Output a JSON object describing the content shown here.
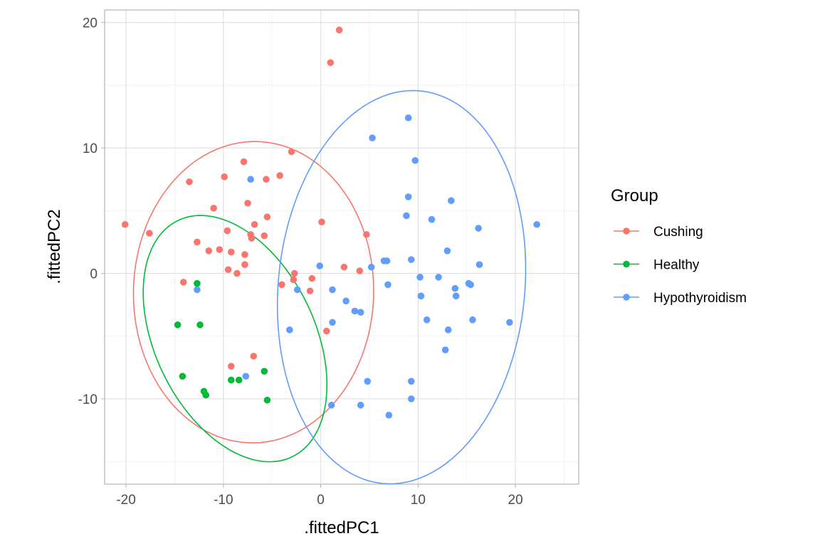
{
  "chart_data": {
    "type": "scatter",
    "xlabel": ".fittedPC1",
    "ylabel": ".fittedPC2",
    "xlim": [
      -22.2,
      26.5
    ],
    "ylim": [
      -16.8,
      21.0
    ],
    "x_ticks": [
      -20,
      -10,
      0,
      10,
      20
    ],
    "x_tick_labels": [
      "-20",
      "-10",
      "0",
      "10",
      "20"
    ],
    "y_ticks": [
      -10,
      0,
      10,
      20
    ],
    "y_tick_labels": [
      "-10",
      "0",
      "10",
      "20"
    ],
    "grid": true,
    "theme": "light",
    "legend": {
      "title": "Group",
      "position": "right",
      "entries": [
        "Cushing",
        "Healthy",
        "Hypothyroidism"
      ]
    },
    "series": [
      {
        "name": "Cushing",
        "color": "#F8766D",
        "ellipse": {
          "center": [
            -6.9,
            -1.5
          ],
          "semi_axes": [
            12.35,
            12.0
          ],
          "angle_deg": 10
        },
        "points": [
          [
            -20.1,
            3.9
          ],
          [
            -17.6,
            3.2
          ],
          [
            -13.5,
            7.3
          ],
          [
            -12.7,
            2.5
          ],
          [
            -11.5,
            1.8
          ],
          [
            -11.0,
            5.2
          ],
          [
            -10.4,
            1.9
          ],
          [
            -9.9,
            7.7
          ],
          [
            -9.6,
            3.4
          ],
          [
            -9.5,
            0.3
          ],
          [
            -9.2,
            1.7
          ],
          [
            -8.6,
            0.0
          ],
          [
            -7.9,
            8.9
          ],
          [
            -7.8,
            0.7
          ],
          [
            -7.8,
            1.5
          ],
          [
            -7.5,
            5.6
          ],
          [
            -7.2,
            3.1
          ],
          [
            -7.1,
            2.8
          ],
          [
            -6.8,
            3.9
          ],
          [
            -5.8,
            3.0
          ],
          [
            -5.6,
            7.5
          ],
          [
            -5.5,
            4.5
          ],
          [
            -4.2,
            7.8
          ],
          [
            -4.0,
            -0.9
          ],
          [
            -3.0,
            9.7
          ],
          [
            -2.8,
            -0.5
          ],
          [
            -2.7,
            0.0
          ],
          [
            -1.1,
            -1.4
          ],
          [
            -0.9,
            -0.4
          ],
          [
            0.1,
            4.1
          ],
          [
            0.6,
            -4.6
          ],
          [
            2.4,
            0.5
          ],
          [
            4.0,
            0.2
          ],
          [
            4.7,
            3.1
          ],
          [
            1.0,
            16.8
          ],
          [
            1.9,
            19.4
          ],
          [
            -14.1,
            -0.7
          ],
          [
            -6.9,
            -6.6
          ],
          [
            -9.2,
            -7.4
          ]
        ]
      },
      {
        "name": "Healthy",
        "color": "#00BA38",
        "ellipse": {
          "center": [
            -8.8,
            -5.2
          ],
          "semi_axes": [
            11.3,
            7.6
          ],
          "angle_deg": -48
        },
        "points": [
          [
            -14.7,
            -4.1
          ],
          [
            -14.2,
            -8.2
          ],
          [
            -12.7,
            -0.8
          ],
          [
            -12.4,
            -4.1
          ],
          [
            -12.0,
            -9.4
          ],
          [
            -11.8,
            -9.7
          ],
          [
            -9.2,
            -8.5
          ],
          [
            -8.4,
            -8.5
          ],
          [
            -5.8,
            -7.8
          ],
          [
            -5.5,
            -10.1
          ]
        ]
      },
      {
        "name": "Hypothyroidism",
        "color": "#619CFF",
        "ellipse": {
          "center": [
            8.3,
            -1.1
          ],
          "semi_axes": [
            12.6,
            15.8
          ],
          "angle_deg": -12
        },
        "points": [
          [
            -12.7,
            -1.3
          ],
          [
            -7.2,
            7.5
          ],
          [
            -7.7,
            -8.2
          ],
          [
            -3.2,
            -4.5
          ],
          [
            -2.4,
            -1.3
          ],
          [
            -0.1,
            0.6
          ],
          [
            1.2,
            -1.3
          ],
          [
            1.2,
            -3.9
          ],
          [
            1.1,
            -10.5
          ],
          [
            2.6,
            -2.2
          ],
          [
            3.5,
            -3.0
          ],
          [
            4.1,
            -3.1
          ],
          [
            4.1,
            -10.5
          ],
          [
            4.8,
            -8.6
          ],
          [
            5.2,
            0.5
          ],
          [
            5.3,
            10.8
          ],
          [
            6.5,
            1.0
          ],
          [
            6.8,
            1.0
          ],
          [
            6.9,
            -0.9
          ],
          [
            7.0,
            -11.3
          ],
          [
            8.8,
            4.6
          ],
          [
            9.0,
            6.1
          ],
          [
            9.0,
            12.4
          ],
          [
            9.3,
            1.1
          ],
          [
            9.3,
            -8.6
          ],
          [
            9.3,
            -10.0
          ],
          [
            9.7,
            9.0
          ],
          [
            10.2,
            -0.3
          ],
          [
            10.3,
            -1.8
          ],
          [
            10.9,
            -3.7
          ],
          [
            11.4,
            4.3
          ],
          [
            12.1,
            -0.3
          ],
          [
            12.8,
            -6.1
          ],
          [
            13.0,
            1.8
          ],
          [
            13.1,
            -4.5
          ],
          [
            13.4,
            5.8
          ],
          [
            13.8,
            -1.2
          ],
          [
            13.9,
            -1.8
          ],
          [
            15.2,
            -0.8
          ],
          [
            15.4,
            -0.9
          ],
          [
            15.6,
            -3.7
          ],
          [
            16.2,
            3.6
          ],
          [
            16.3,
            0.7
          ],
          [
            19.4,
            -3.9
          ],
          [
            22.2,
            3.9
          ]
        ]
      }
    ]
  }
}
